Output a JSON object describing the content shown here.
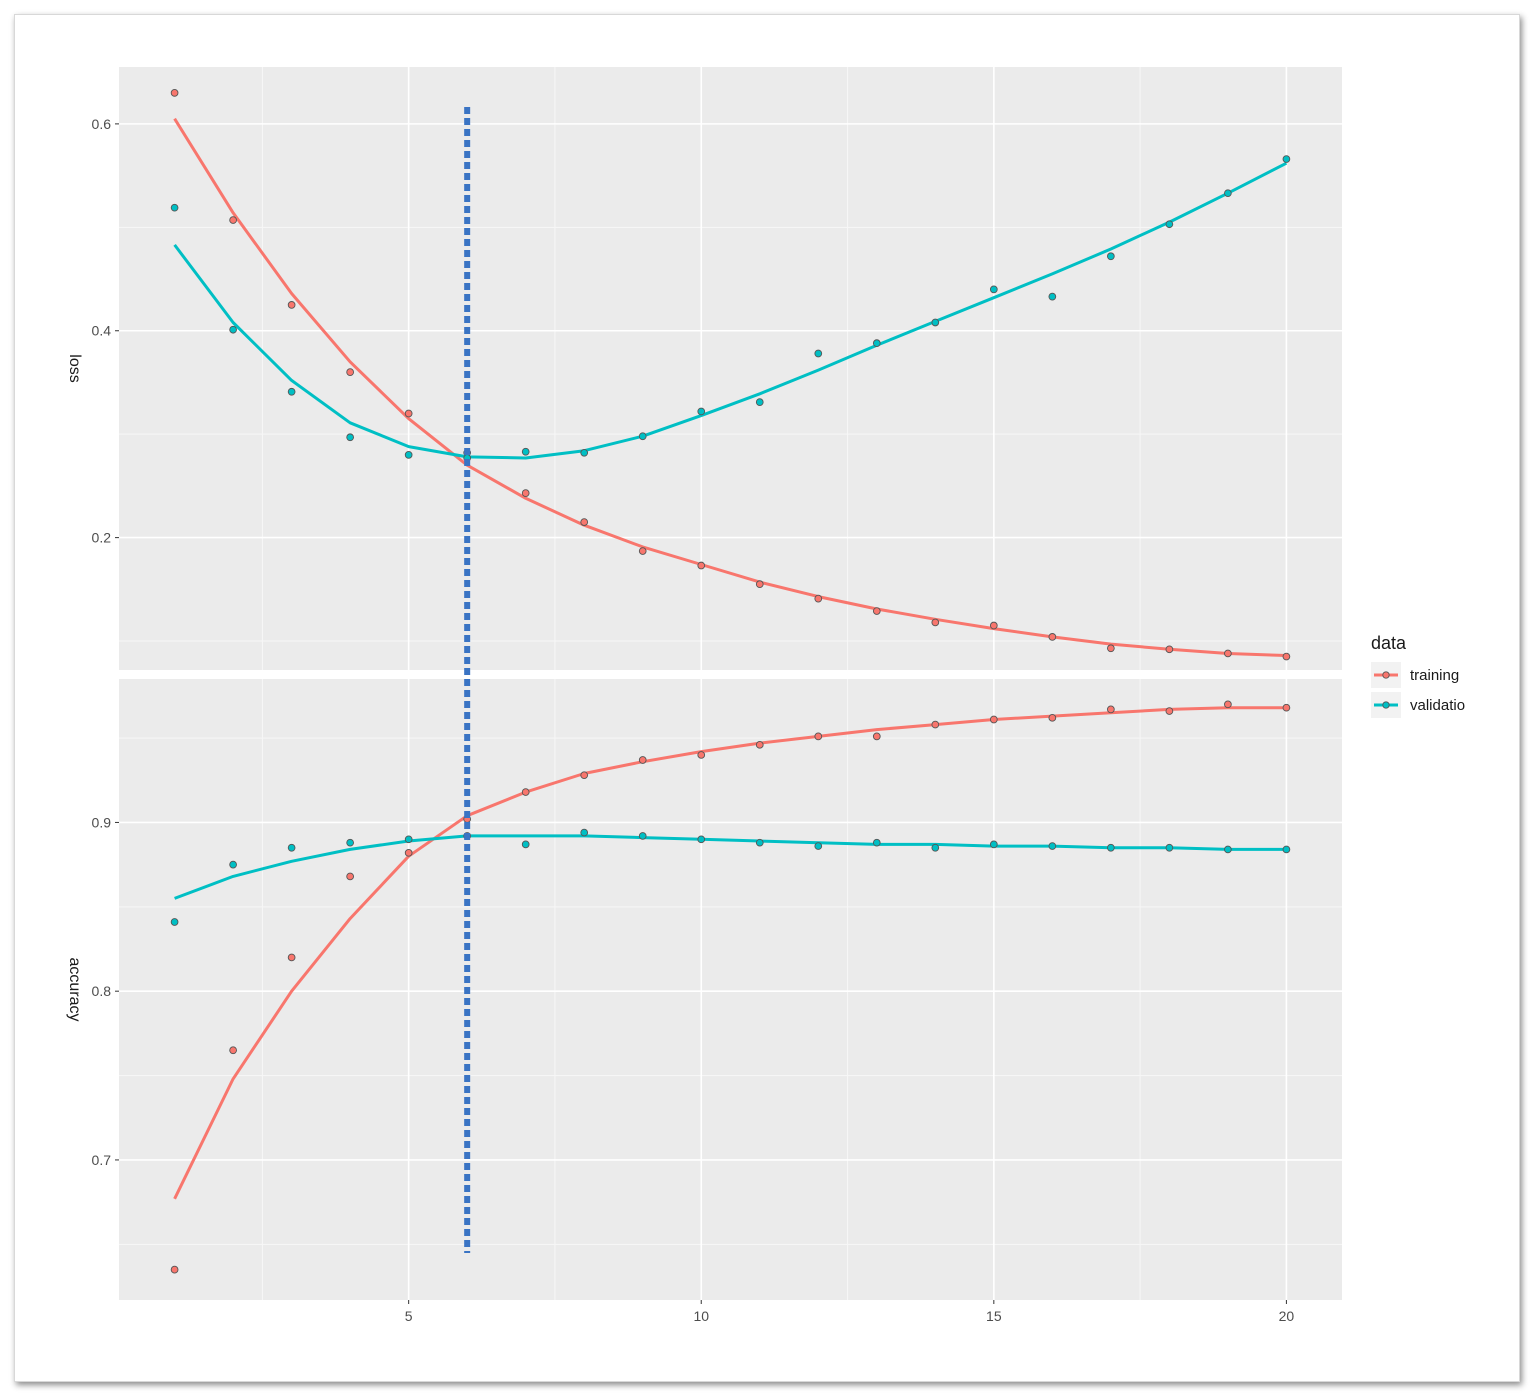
{
  "chart_data": {
    "type": "line",
    "facets": [
      {
        "ylabel": "loss",
        "ylim": [
          0.072,
          0.655
        ],
        "yticks": [
          0.2,
          0.4,
          0.6
        ],
        "ytick_labels": [
          "0.2",
          "0.4",
          "0.6"
        ],
        "series": [
          {
            "name": "training",
            "color": "#f8766d",
            "x": [
              1,
              2,
              3,
              4,
              5,
              6,
              7,
              8,
              9,
              10,
              11,
              12,
              13,
              14,
              15,
              16,
              17,
              18,
              19,
              20
            ],
            "points": [
              0.63,
              0.507,
              0.425,
              0.36,
              0.32,
              0.282,
              0.243,
              0.215,
              0.187,
              0.173,
              0.155,
              0.141,
              0.129,
              0.118,
              0.115,
              0.104,
              0.093,
              0.092,
              0.088,
              0.085
            ],
            "smooth": [
              0.605,
              0.514,
              0.436,
              0.37,
              0.315,
              0.27,
              0.238,
              0.212,
              0.191,
              0.174,
              0.157,
              0.143,
              0.131,
              0.121,
              0.112,
              0.104,
              0.097,
              0.092,
              0.088,
              0.086
            ]
          },
          {
            "name": "validatio",
            "color": "#00bfc4",
            "x": [
              1,
              2,
              3,
              4,
              5,
              6,
              7,
              8,
              9,
              10,
              11,
              12,
              13,
              14,
              15,
              16,
              17,
              18,
              19,
              20
            ],
            "points": [
              0.519,
              0.401,
              0.341,
              0.297,
              0.28,
              0.277,
              0.283,
              0.282,
              0.298,
              0.322,
              0.331,
              0.378,
              0.388,
              0.408,
              0.44,
              0.433,
              0.472,
              0.503,
              0.533,
              0.566
            ],
            "smooth": [
              0.483,
              0.408,
              0.352,
              0.311,
              0.288,
              0.278,
              0.277,
              0.284,
              0.298,
              0.318,
              0.339,
              0.362,
              0.386,
              0.409,
              0.432,
              0.455,
              0.479,
              0.505,
              0.533,
              0.562
            ]
          }
        ]
      },
      {
        "ylabel": "accuracy",
        "ylim": [
          0.617,
          0.985
        ],
        "yticks": [
          0.7,
          0.8,
          0.9
        ],
        "ytick_labels": [
          "0.7",
          "0.8",
          "0.9"
        ],
        "series": [
          {
            "name": "training",
            "color": "#f8766d",
            "x": [
              1,
              2,
              3,
              4,
              5,
              6,
              7,
              8,
              9,
              10,
              11,
              12,
              13,
              14,
              15,
              16,
              17,
              18,
              19,
              20
            ],
            "points": [
              0.635,
              0.765,
              0.82,
              0.868,
              0.882,
              0.902,
              0.918,
              0.928,
              0.937,
              0.94,
              0.946,
              0.951,
              0.951,
              0.958,
              0.961,
              0.962,
              0.967,
              0.966,
              0.97,
              0.968
            ],
            "smooth": [
              0.677,
              0.748,
              0.8,
              0.843,
              0.88,
              0.904,
              0.918,
              0.929,
              0.936,
              0.942,
              0.947,
              0.951,
              0.955,
              0.958,
              0.961,
              0.963,
              0.965,
              0.967,
              0.968,
              0.968
            ]
          },
          {
            "name": "validatio",
            "color": "#00bfc4",
            "x": [
              1,
              2,
              3,
              4,
              5,
              6,
              7,
              8,
              9,
              10,
              11,
              12,
              13,
              14,
              15,
              16,
              17,
              18,
              19,
              20
            ],
            "points": [
              0.841,
              0.875,
              0.885,
              0.888,
              0.89,
              0.892,
              0.887,
              0.894,
              0.892,
              0.89,
              0.888,
              0.886,
              0.888,
              0.885,
              0.887,
              0.886,
              0.885,
              0.885,
              0.884,
              0.884
            ],
            "smooth": [
              0.855,
              0.868,
              0.877,
              0.884,
              0.889,
              0.892,
              0.892,
              0.892,
              0.891,
              0.89,
              0.889,
              0.888,
              0.887,
              0.887,
              0.886,
              0.886,
              0.885,
              0.885,
              0.884,
              0.884
            ]
          }
        ]
      }
    ],
    "xlim": [
      0.05,
      20.95
    ],
    "xticks": [
      5,
      10,
      15,
      20
    ],
    "xtick_labels": [
      "5",
      "10",
      "15",
      "20"
    ],
    "vline_x": 6,
    "vline_color": "#3a74c4",
    "legend": {
      "title": "data",
      "position": "right",
      "entries": [
        {
          "label": "training",
          "color": "#f8766d"
        },
        {
          "label": "validatio",
          "color": "#00bfc4"
        }
      ]
    },
    "grid": true,
    "panel_background": "#ebebeb"
  }
}
